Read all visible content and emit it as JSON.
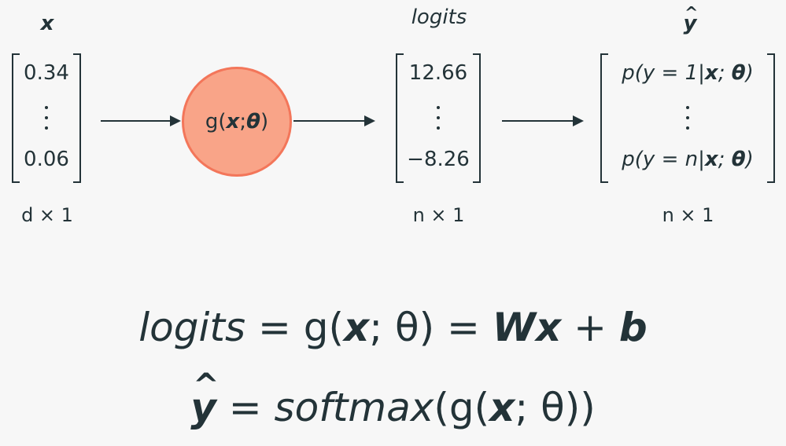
{
  "headers": {
    "input": "x",
    "logits": "logits",
    "output": "y"
  },
  "input_vector": {
    "first": "0.34",
    "last": "0.06",
    "dim": "d × 1"
  },
  "node": {
    "fn": "g(",
    "x": "x",
    "sep": "; ",
    "theta": "θ",
    "close": ")"
  },
  "logits_vector": {
    "first": "12.66",
    "last": "−8.26",
    "dim": "n × 1"
  },
  "output_vector": {
    "first": {
      "pre": "p(y = 1|",
      "x": "x",
      "sep": "; ",
      "theta": "θ",
      "close": ")"
    },
    "last": {
      "pre": "p(y = n|",
      "x": "x",
      "sep": "; ",
      "theta": "θ",
      "close": ")"
    },
    "dim": "n × 1"
  },
  "formula1": {
    "lhs": "logits",
    "eq1": " = g(",
    "x": "x",
    "mid": "; θ) = ",
    "W": "W",
    "Wx": "x",
    "plus": " + ",
    "b": "b"
  },
  "formula2": {
    "lhs": "y",
    "eq": " = ",
    "fn": "softmax",
    "open": "(g(",
    "x": "x",
    "rest": "; θ))"
  }
}
